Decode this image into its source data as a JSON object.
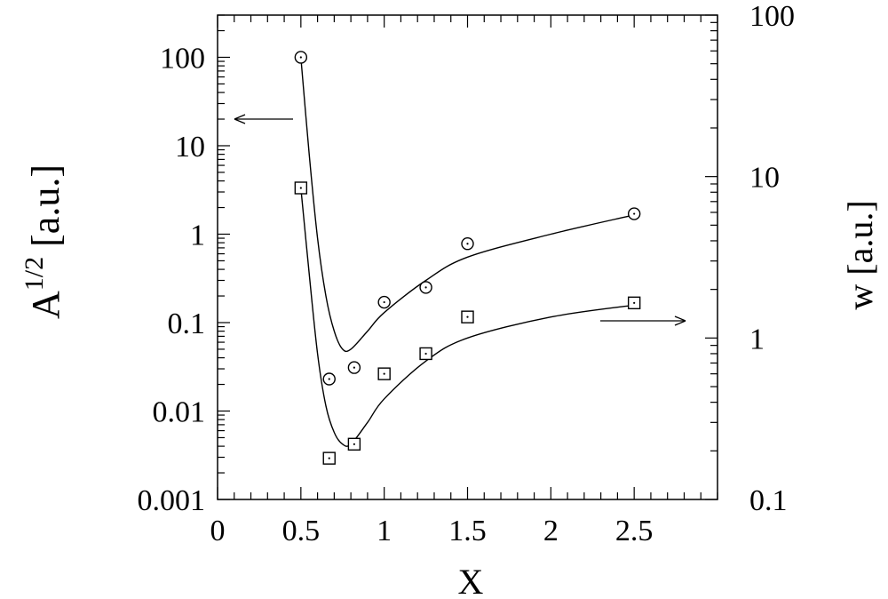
{
  "chart_data": {
    "type": "scatter",
    "xlabel": "X",
    "ylabel_left": {
      "base": "A",
      "sup": "1/2",
      "unit": " [a.u.]"
    },
    "ylabel_right": "w [a.u.]",
    "x_ticks": [
      "0",
      "0.5",
      "1",
      "1.5",
      "2",
      "2.5"
    ],
    "x_tick_values": [
      0,
      0.5,
      1,
      1.5,
      2,
      2.5
    ],
    "x_minor_step": 0.1,
    "xlim": [
      0,
      3
    ],
    "left_axis": {
      "scale": "log",
      "ylim": [
        0.001,
        300
      ],
      "ticks": [
        "100",
        "10",
        "1",
        "0.1",
        "0.01",
        "0.001"
      ],
      "tick_values": [
        100,
        10,
        1,
        0.1,
        0.01,
        0.001
      ]
    },
    "right_axis": {
      "scale": "log",
      "ylim": [
        0.1,
        100
      ],
      "ticks": [
        "100",
        "10",
        "1",
        "0.1"
      ],
      "tick_values": [
        100,
        10,
        1,
        0.1
      ]
    },
    "series": [
      {
        "marker": "circle",
        "axis": "left",
        "x": [
          0.5,
          0.67,
          0.82,
          1.0,
          1.25,
          1.5,
          2.5
        ],
        "y": [
          100,
          0.023,
          0.031,
          0.17,
          0.25,
          0.78,
          1.7
        ],
        "fit_curve": [
          [
            0.5,
            100
          ],
          [
            0.55,
            8
          ],
          [
            0.6,
            0.9
          ],
          [
            0.65,
            0.2
          ],
          [
            0.7,
            0.08
          ],
          [
            0.75,
            0.05
          ],
          [
            0.8,
            0.05
          ],
          [
            0.9,
            0.08
          ],
          [
            1.0,
            0.13
          ],
          [
            1.25,
            0.3
          ],
          [
            1.5,
            0.55
          ],
          [
            2.0,
            1.0
          ],
          [
            2.5,
            1.65
          ]
        ]
      },
      {
        "marker": "square",
        "axis": "right",
        "x": [
          0.5,
          0.67,
          0.82,
          1.0,
          1.25,
          1.5,
          2.5
        ],
        "y": [
          8.5,
          0.18,
          0.22,
          0.6,
          0.8,
          1.35,
          1.65
        ],
        "fit_curve": [
          [
            0.5,
            8.5
          ],
          [
            0.55,
            2.5
          ],
          [
            0.6,
            0.8
          ],
          [
            0.65,
            0.38
          ],
          [
            0.7,
            0.26
          ],
          [
            0.75,
            0.22
          ],
          [
            0.8,
            0.22
          ],
          [
            0.9,
            0.3
          ],
          [
            1.0,
            0.42
          ],
          [
            1.25,
            0.72
          ],
          [
            1.5,
            1.0
          ],
          [
            2.0,
            1.35
          ],
          [
            2.5,
            1.6
          ]
        ]
      }
    ],
    "annotations": [
      {
        "type": "arrow",
        "direction": "left",
        "meaning": "circles read on left axis"
      },
      {
        "type": "arrow",
        "direction": "right",
        "meaning": "squares read on right axis"
      }
    ]
  }
}
